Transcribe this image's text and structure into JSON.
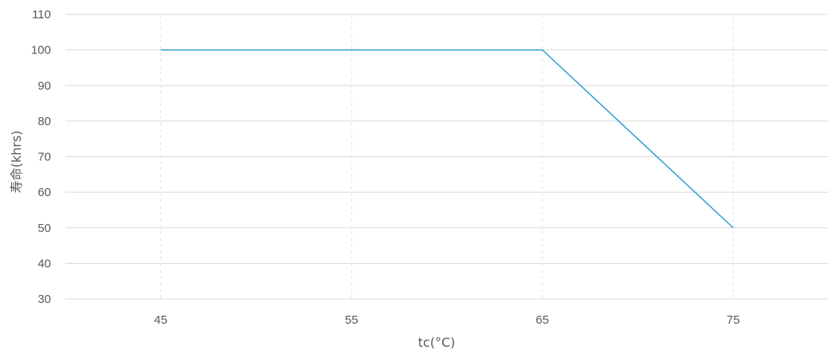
{
  "chart_data": {
    "type": "line",
    "title": "",
    "xlabel": "tc(°C)",
    "ylabel": "寿命(khrs)",
    "x": [
      45,
      65,
      75
    ],
    "series": [
      {
        "values": [
          100,
          100,
          50
        ],
        "color": "#2E9FD0"
      }
    ],
    "x_ticks": [
      "45",
      "55",
      "65",
      "75"
    ],
    "x_tick_values": [
      45,
      55,
      65,
      75
    ],
    "xlim": [
      40,
      80
    ],
    "y_ticks": [
      "30",
      "40",
      "50",
      "60",
      "70",
      "80",
      "90",
      "100",
      "110"
    ],
    "ylim": [
      30,
      110
    ],
    "grid": {
      "horizontal": true,
      "vertical": true
    },
    "colors": {
      "grid_horizontal": "#D9D9D9",
      "grid_vertical": "#E3E3E3",
      "text": "#595959"
    }
  }
}
